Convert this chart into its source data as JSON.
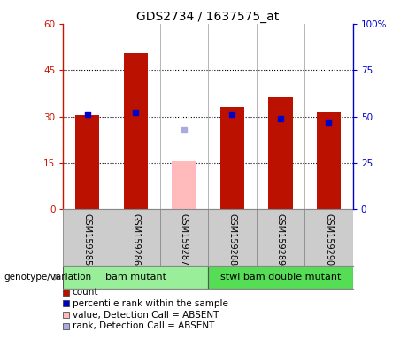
{
  "title": "GDS2734 / 1637575_at",
  "samples": [
    "GSM159285",
    "GSM159286",
    "GSM159287",
    "GSM159288",
    "GSM159289",
    "GSM159290"
  ],
  "count_values": [
    30.5,
    50.5,
    null,
    33.0,
    36.5,
    31.5
  ],
  "count_absent_values": [
    null,
    null,
    15.5,
    null,
    null,
    null
  ],
  "percentile_values": [
    51.0,
    52.0,
    null,
    51.0,
    49.0,
    47.0
  ],
  "percentile_absent_values": [
    null,
    null,
    43.0,
    null,
    null,
    null
  ],
  "groups": [
    {
      "label": "bam mutant",
      "samples": [
        0,
        1,
        2
      ],
      "color": "#99ee99"
    },
    {
      "label": "stwl bam double mutant",
      "samples": [
        3,
        4,
        5
      ],
      "color": "#55dd55"
    }
  ],
  "ylim_left": [
    0,
    60
  ],
  "ylim_right": [
    0,
    100
  ],
  "yticks_left": [
    0,
    15,
    30,
    45,
    60
  ],
  "yticks_right": [
    0,
    25,
    50,
    75,
    100
  ],
  "ytick_labels_left": [
    "0",
    "15",
    "30",
    "45",
    "60"
  ],
  "ytick_labels_right": [
    "0",
    "25",
    "50",
    "75",
    "100%"
  ],
  "bar_color_count": "#bb1100",
  "bar_color_count_absent": "#ffbbbb",
  "dot_color_percentile": "#0000cc",
  "dot_color_percentile_absent": "#aaaadd",
  "background_color": "#ffffff",
  "plot_bg": "#ffffff",
  "sample_row_color": "#cccccc",
  "left_axis_color": "#cc1100",
  "right_axis_color": "#0000cc",
  "genotype_label": "genotype/variation",
  "legend_items": [
    {
      "color": "#bb1100",
      "label": "count",
      "marker": "s"
    },
    {
      "color": "#0000cc",
      "label": "percentile rank within the sample",
      "marker": "s"
    },
    {
      "color": "#ffbbbb",
      "label": "value, Detection Call = ABSENT",
      "marker": "s"
    },
    {
      "color": "#aaaadd",
      "label": "rank, Detection Call = ABSENT",
      "marker": "s"
    }
  ]
}
